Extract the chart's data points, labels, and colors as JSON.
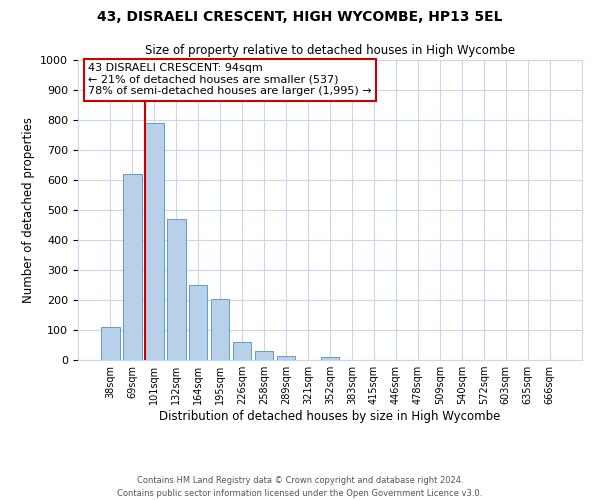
{
  "title": "43, DISRAELI CRESCENT, HIGH WYCOMBE, HP13 5EL",
  "subtitle": "Size of property relative to detached houses in High Wycombe",
  "xlabel": "Distribution of detached houses by size in High Wycombe",
  "ylabel": "Number of detached properties",
  "bar_labels": [
    "38sqm",
    "69sqm",
    "101sqm",
    "132sqm",
    "164sqm",
    "195sqm",
    "226sqm",
    "258sqm",
    "289sqm",
    "321sqm",
    "352sqm",
    "383sqm",
    "415sqm",
    "446sqm",
    "478sqm",
    "509sqm",
    "540sqm",
    "572sqm",
    "603sqm",
    "635sqm",
    "666sqm"
  ],
  "bar_values": [
    110,
    620,
    790,
    470,
    250,
    205,
    60,
    30,
    15,
    0,
    10,
    0,
    0,
    0,
    0,
    0,
    0,
    0,
    0,
    0,
    0
  ],
  "bar_color": "#b8d0e8",
  "bar_edge_color": "#5b9bd5",
  "ylim": [
    0,
    1000
  ],
  "yticks": [
    0,
    100,
    200,
    300,
    400,
    500,
    600,
    700,
    800,
    900,
    1000
  ],
  "property_line_color": "#cc0000",
  "annotation_text": "43 DISRAELI CRESCENT: 94sqm\n← 21% of detached houses are smaller (537)\n78% of semi-detached houses are larger (1,995) →",
  "annotation_box_color": "#cc0000",
  "footer_line1": "Contains HM Land Registry data © Crown copyright and database right 2024.",
  "footer_line2": "Contains public sector information licensed under the Open Government Licence v3.0.",
  "background_color": "#ffffff",
  "grid_color": "#c8d8ea"
}
